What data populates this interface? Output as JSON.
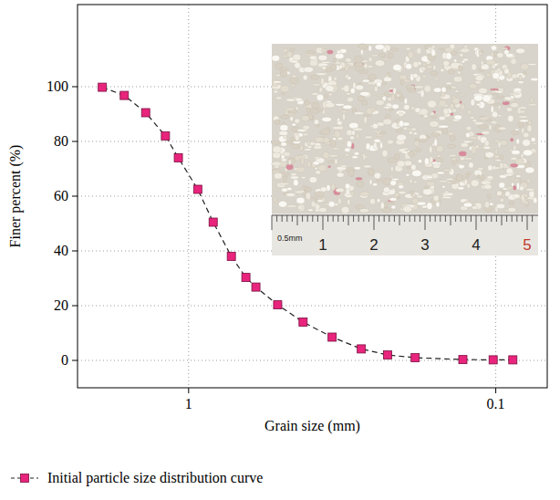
{
  "chart_data": {
    "type": "line",
    "x_label": "Grain size (mm)",
    "y_label": "Finer percent (%)",
    "x": [
      1.91,
      1.62,
      1.38,
      1.19,
      1.08,
      0.934,
      0.832,
      0.726,
      0.651,
      0.604,
      0.513,
      0.424,
      0.341,
      0.274,
      0.225,
      0.183,
      0.128,
      0.102,
      0.088
    ],
    "series": [
      {
        "name": "Initial particle size distribution curve",
        "color": "#e8247c",
        "marker": "square",
        "line_style": "dashed",
        "values": [
          99.8,
          96.8,
          90.5,
          82,
          74,
          62.5,
          50.5,
          38,
          30.3,
          26.8,
          20.3,
          14,
          8.5,
          4.2,
          2,
          1,
          0.3,
          0.2,
          0.2
        ]
      }
    ],
    "xlim": [
      2.3,
      0.068
    ],
    "xticks": [
      1,
      0.1
    ],
    "ylim": [
      -10,
      130
    ],
    "yticks": [
      0,
      20,
      40,
      60,
      80,
      100
    ],
    "log": "x",
    "grid": true,
    "legend": "bottom-left",
    "annotations": [
      "0.5mm",
      "1",
      "2",
      "3",
      "4",
      "5"
    ]
  }
}
